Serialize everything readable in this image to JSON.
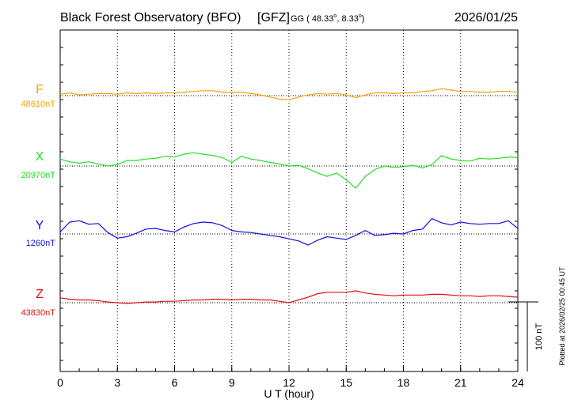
{
  "header": {
    "title": "Black Forest Observatory (BFO)",
    "institute": "[GFZ]",
    "coord_prefix": "GG ( 48.33",
    "coord_mid": ",   8.33",
    "coord_end": ")",
    "date": "2026/01/25"
  },
  "footer": {
    "plotted_note": "Plotted at 2026/02/25 00:45 UT",
    "scale_label": "100 nT"
  },
  "chart_data": {
    "type": "line",
    "title": "Black Forest Observatory (BFO)",
    "xlabel": "U T (hour)",
    "ylabel": "",
    "x_ticks": [
      0,
      3,
      6,
      9,
      12,
      15,
      18,
      21,
      24
    ],
    "xlim": [
      0,
      24
    ],
    "grid": "dotted vertical every 3 h, dotted baseline per component",
    "scale_bar_nT": 100,
    "x": [
      0,
      0.5,
      1,
      1.5,
      2,
      2.5,
      3,
      3.5,
      4,
      4.5,
      5,
      5.5,
      6,
      6.5,
      7,
      7.5,
      8,
      8.5,
      9,
      9.5,
      10,
      10.5,
      11,
      11.5,
      12,
      12.5,
      13,
      13.5,
      14,
      14.5,
      15,
      15.5,
      16,
      16.5,
      17,
      17.5,
      18,
      18.5,
      19,
      19.5,
      20,
      20.5,
      21,
      21.5,
      22,
      22.5,
      23,
      23.5,
      24
    ],
    "series": [
      {
        "name": "F",
        "baseline_label": "48610nT",
        "color": "#f5a300",
        "values": [
          2,
          4,
          1,
          2,
          3,
          3,
          2,
          4,
          3,
          4,
          3,
          4,
          4,
          5,
          6,
          7,
          7,
          5,
          5,
          5,
          3,
          1,
          -2,
          -5,
          -6,
          -2,
          1,
          3,
          2,
          3,
          1,
          -3,
          1,
          4,
          4,
          3,
          4,
          4,
          6,
          7,
          10,
          8,
          6,
          6,
          5,
          5,
          6,
          6,
          5
        ]
      },
      {
        "name": "X",
        "baseline_label": "20970nT",
        "color": "#22e022",
        "values": [
          10,
          6,
          4,
          6,
          3,
          0,
          2,
          8,
          8,
          10,
          11,
          14,
          13,
          17,
          19,
          17,
          15,
          12,
          5,
          14,
          10,
          8,
          5,
          3,
          0,
          1,
          -4,
          -10,
          -15,
          -10,
          -20,
          -32,
          -15,
          -5,
          0,
          -2,
          -1,
          1,
          -3,
          2,
          15,
          10,
          8,
          7,
          11,
          10,
          11,
          13,
          12
        ]
      },
      {
        "name": "Y",
        "baseline_label": "1260nT",
        "color": "#1010e0",
        "values": [
          3,
          17,
          19,
          14,
          15,
          2,
          -6,
          -4,
          1,
          7,
          8,
          5,
          3,
          10,
          15,
          17,
          16,
          12,
          5,
          3,
          2,
          0,
          -2,
          -4,
          -7,
          -10,
          -16,
          -9,
          -4,
          -6,
          -8,
          -2,
          5,
          -2,
          -1,
          1,
          0,
          5,
          7,
          22,
          16,
          13,
          17,
          15,
          14,
          15,
          15,
          19,
          8
        ]
      },
      {
        "name": "Z",
        "baseline_label": "43830nT",
        "color": "#e01010",
        "values": [
          7,
          5,
          4,
          4,
          3,
          1,
          0,
          -1,
          0,
          1,
          1,
          2,
          2,
          3,
          4,
          4,
          5,
          5,
          4,
          5,
          5,
          4,
          4,
          2,
          0,
          4,
          8,
          13,
          15,
          15,
          15,
          17,
          14,
          12,
          11,
          10,
          11,
          11,
          11,
          12,
          12,
          11,
          10,
          10,
          9,
          10,
          10,
          9,
          8
        ]
      }
    ]
  }
}
